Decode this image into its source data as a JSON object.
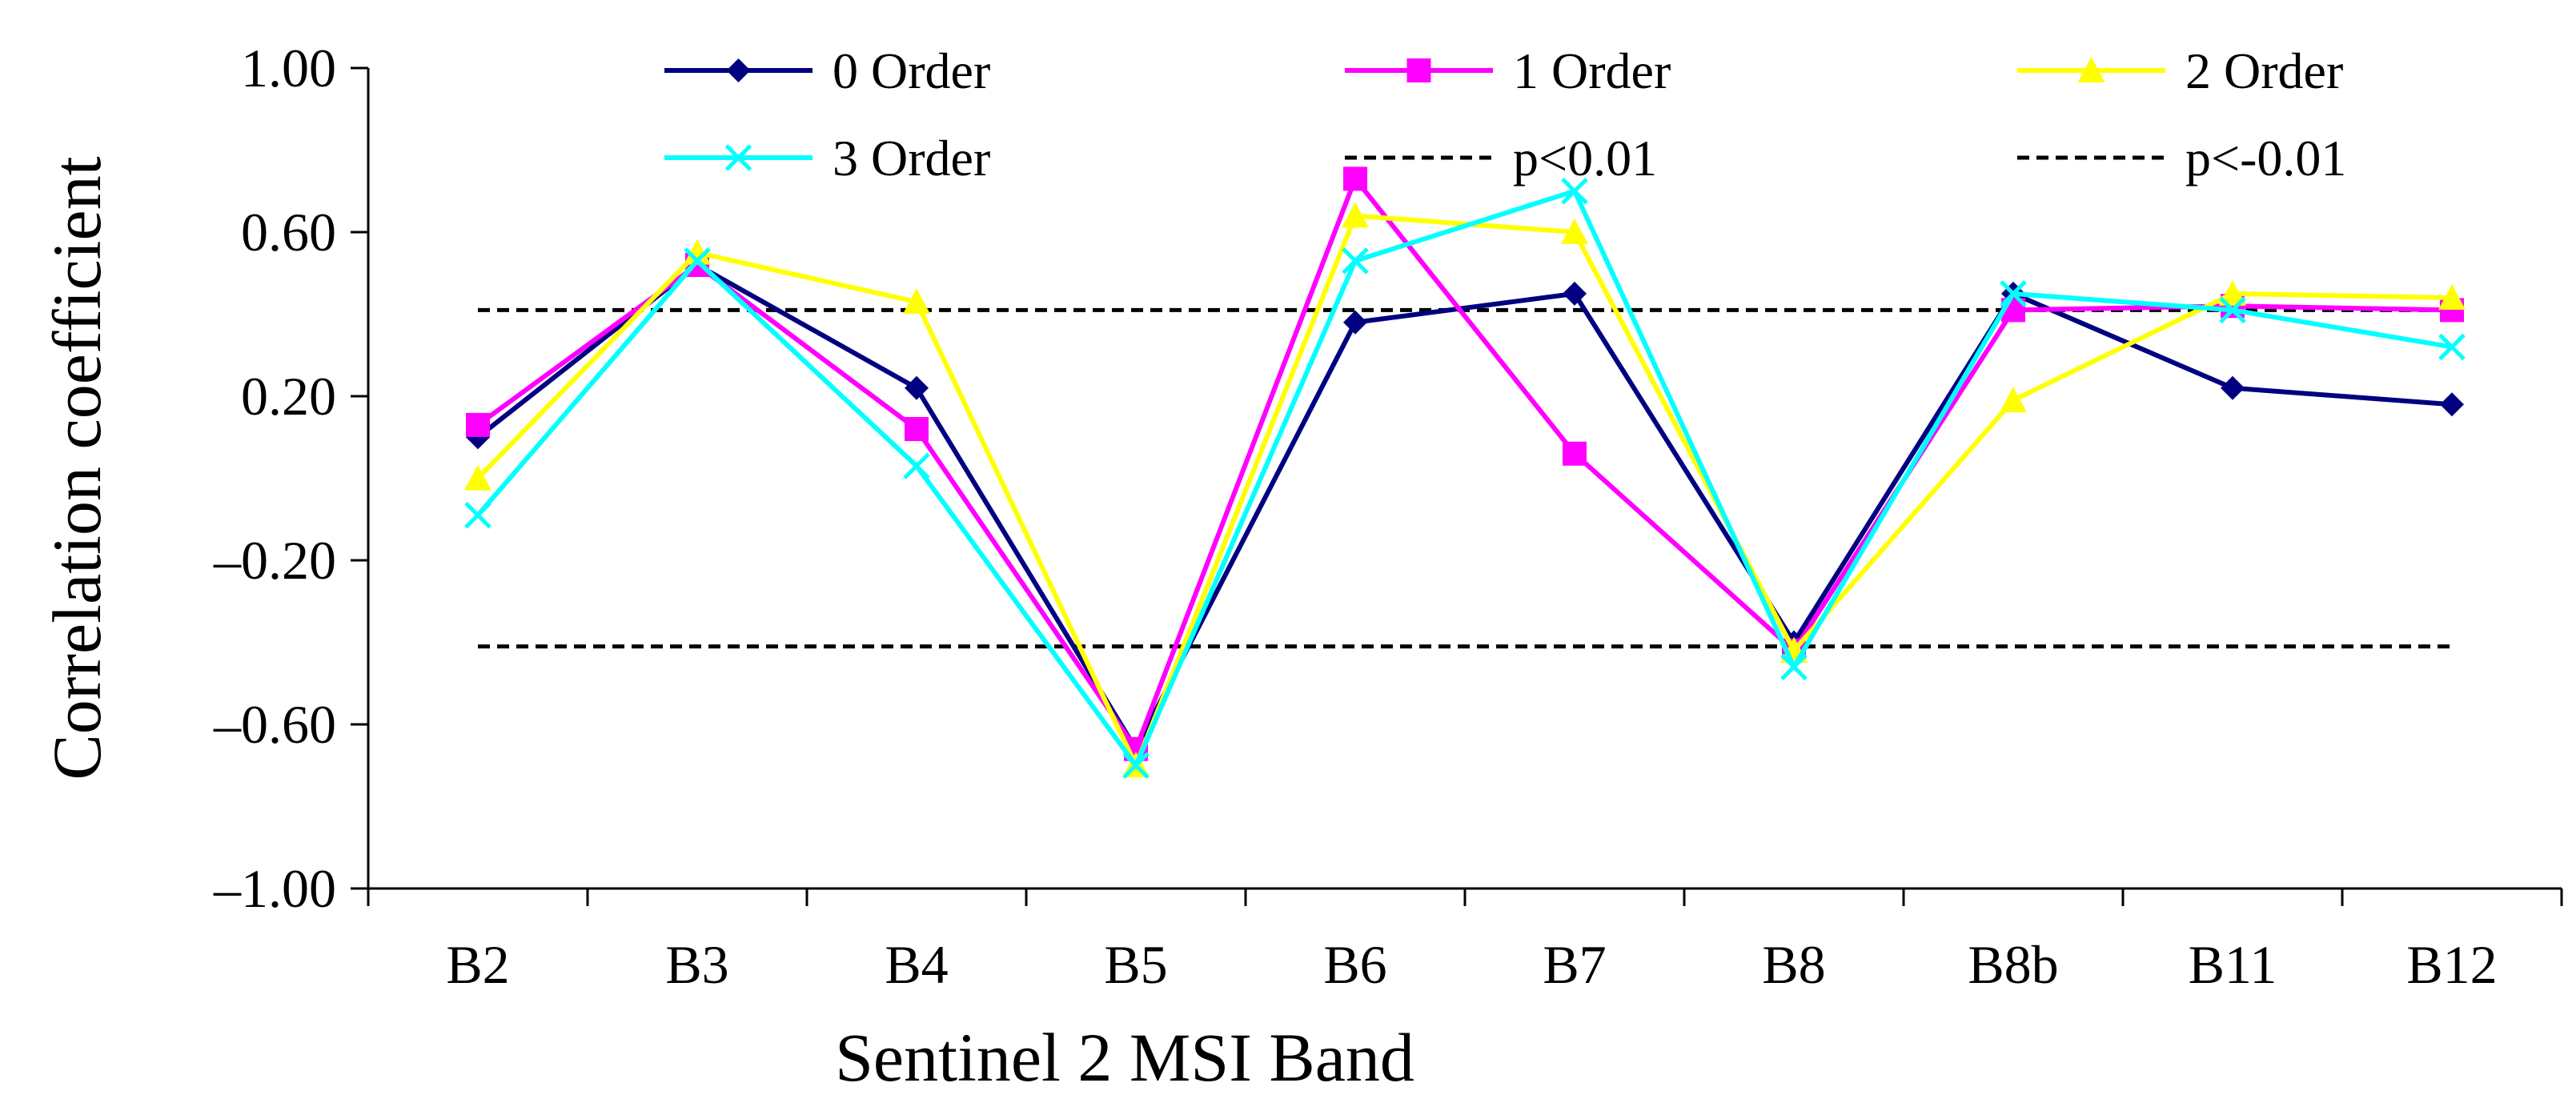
{
  "chart_data": {
    "type": "line",
    "xlabel": "Sentinel 2 MSI Band",
    "ylabel": "Correlation coefficient",
    "categories": [
      "B2",
      "B3",
      "B4",
      "B5",
      "B6",
      "B7",
      "B8",
      "B8b",
      "B11",
      "B12"
    ],
    "ylim": [
      -1.0,
      1.0
    ],
    "yticks": [
      "-1.00",
      "-0.60",
      "-0.20",
      "0.20",
      "0.60",
      "1.00"
    ],
    "grid": false,
    "legend_position": "top",
    "series": [
      {
        "name": "0 Order",
        "color": "#000080",
        "marker": "diamond",
        "values": [
          0.1,
          0.52,
          0.22,
          -0.66,
          0.38,
          0.45,
          -0.4,
          0.45,
          0.22,
          0.18
        ]
      },
      {
        "name": "1 Order",
        "color": "#FF00FF",
        "marker": "square",
        "values": [
          0.13,
          0.52,
          0.12,
          -0.66,
          0.73,
          0.06,
          -0.42,
          0.41,
          0.42,
          0.41
        ]
      },
      {
        "name": "2 Order",
        "color": "#FFFF00",
        "marker": "triangle",
        "values": [
          0.0,
          0.55,
          0.43,
          -0.7,
          0.64,
          0.6,
          -0.42,
          0.19,
          0.45,
          0.44
        ]
      },
      {
        "name": "3 Order",
        "color": "#00FFFF",
        "marker": "x",
        "values": [
          -0.09,
          0.53,
          0.03,
          -0.7,
          0.53,
          0.7,
          -0.46,
          0.45,
          0.41,
          0.32
        ]
      }
    ],
    "reference_lines": [
      {
        "name": "p<0.01",
        "value": 0.41,
        "color": "#000000",
        "style": "dashed"
      },
      {
        "name": "p<-0.01",
        "value": -0.41,
        "color": "#000000",
        "style": "dashed"
      }
    ]
  }
}
